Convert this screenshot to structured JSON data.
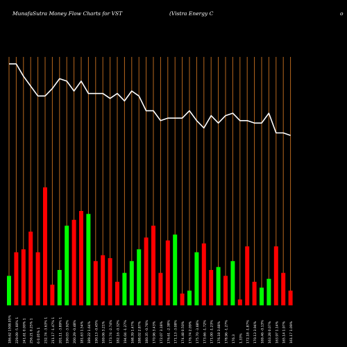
{
  "header": {
    "left": "MunafaSutra  Money Flow  Charts for VST",
    "middle": "(Vistra  Energy C",
    "right": "o"
  },
  "chart_data": {
    "type": "bar",
    "title": "MunafaSutra  Money Flow  Charts for VST",
    "subtitle": "(Vistra  Energy C",
    "grid": "vertical",
    "colors": {
      "up": "#00ff00",
      "down": "#ff0000",
      "line": "#ffffff",
      "grid": "#b8681e",
      "background": "#000000"
    },
    "categories": [
      "186.62 1508.05%",
      "229.09 -5.60% 1",
      "241.61 0.00% 1",
      "256.21 0.25% 1",
      "6 0.05% 1",
      "232.74 -3.63% 1",
      "211.17 -1.47% 1",
      "201.11 -3.89% 1",
      "190.03 -3.92%",
      "200.29 -0.48%",
      "181.63 1.54%",
      "189.22 1.64%",
      "190.13 -0.45%",
      "169.06 3.21%",
      "173.74 -2.74%",
      "182.16 -0.32%",
      "194.04 -1.27%",
      "168.39 1.47%",
      "188.02 2.87%",
      "180.35 -0.76%",
      "170.96 3.43%",
      "172.07 3.18%",
      "176.61 -2.38%",
      "171.13 -3.08%",
      "174.48 0.50%",
      "176.74 2.09%",
      "175.70 -3.68%",
      "173.66 -1.72%",
      "171.00 -1.23%",
      "176.18 3.68%",
      "178.96 -1.27%",
      "176.3",
      "1.33%",
      "172.18 -1.87%",
      "170.13 3.94%",
      "169.46 -0.13%",
      "163.28 0.07%",
      "163.97 1.14%",
      "165.14 1.97%",
      "161.17 1.09%"
    ],
    "series": [
      {
        "values": [
          10,
          18,
          19,
          25,
          18,
          40,
          7,
          12,
          27,
          29,
          32,
          31,
          15,
          17,
          16,
          8,
          11,
          15,
          19,
          23,
          27,
          11,
          22,
          24,
          4,
          5,
          18,
          21,
          12,
          13,
          10,
          15,
          2,
          20,
          8,
          6,
          9,
          20,
          11,
          5
        ],
        "colors": [
          "green",
          "red",
          "red",
          "red",
          "red",
          "red",
          "red",
          "green",
          "green",
          "red",
          "red",
          "green",
          "red",
          "red",
          "red",
          "red",
          "green",
          "green",
          "green",
          "red",
          "red",
          "red",
          "red",
          "green",
          "red",
          "green",
          "green",
          "red",
          "red",
          "green",
          "red",
          "green",
          "red",
          "red",
          "red",
          "green",
          "green",
          "red",
          "red",
          "red"
        ]
      },
      {
        "values": [
          98,
          98,
          93,
          89,
          85,
          85,
          88,
          92,
          91,
          87,
          91,
          86,
          86,
          86,
          84,
          86,
          83,
          87,
          85,
          79,
          79,
          75,
          76,
          76,
          76,
          79,
          75,
          72,
          77,
          74,
          77,
          78,
          75,
          75,
          74,
          74,
          78,
          70,
          70,
          69
        ],
        "color": "white"
      }
    ]
  }
}
